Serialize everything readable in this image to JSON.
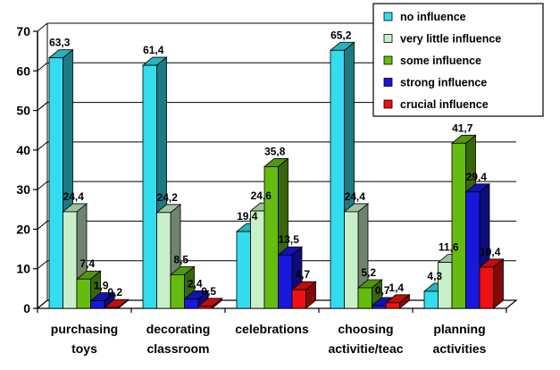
{
  "chart_data": {
    "type": "bar",
    "title": "",
    "xlabel": "",
    "ylabel": "",
    "ylim": [
      0,
      70
    ],
    "yticks": [
      0,
      10,
      20,
      30,
      40,
      50,
      60,
      70
    ],
    "grid": true,
    "legend_position": "top-right",
    "categories": [
      [
        "purchasing",
        "toys"
      ],
      [
        "decorating",
        "classroom"
      ],
      [
        "celebrations"
      ],
      [
        "choosing",
        "activitie/teac"
      ],
      [
        "planning",
        "activities"
      ]
    ],
    "series": [
      {
        "name": "no influence",
        "color": "#33ddee",
        "values": [
          63.3,
          61.4,
          19.4,
          65.2,
          4.3
        ],
        "labels": [
          "63,3",
          "61,4",
          "19,4",
          "65,2",
          "4,3"
        ]
      },
      {
        "name": "very little influence",
        "color": "#c8f0c8",
        "values": [
          24.4,
          24.2,
          24.6,
          24.4,
          11.6
        ],
        "labels": [
          "24,4",
          "24,2",
          "24,6",
          "24,4",
          "11,6"
        ]
      },
      {
        "name": "some influence",
        "color": "#66bb11",
        "values": [
          7.4,
          8.5,
          35.8,
          5.2,
          41.7
        ],
        "labels": [
          "7,4",
          "8,5",
          "35,8",
          "5,2",
          "41,7"
        ]
      },
      {
        "name": "strong influence",
        "color": "#1818dd",
        "values": [
          1.9,
          2.4,
          13.5,
          0.7,
          29.4
        ],
        "labels": [
          "1,9",
          "2,4",
          "13,5",
          "0,7",
          "29,4"
        ]
      },
      {
        "name": "crucial influence",
        "color": "#ee1111",
        "values": [
          0.2,
          0.5,
          4.7,
          1.4,
          10.4
        ],
        "labels": [
          "0,2",
          "0,5",
          "4,7",
          "1,4",
          "10,4"
        ]
      }
    ]
  }
}
